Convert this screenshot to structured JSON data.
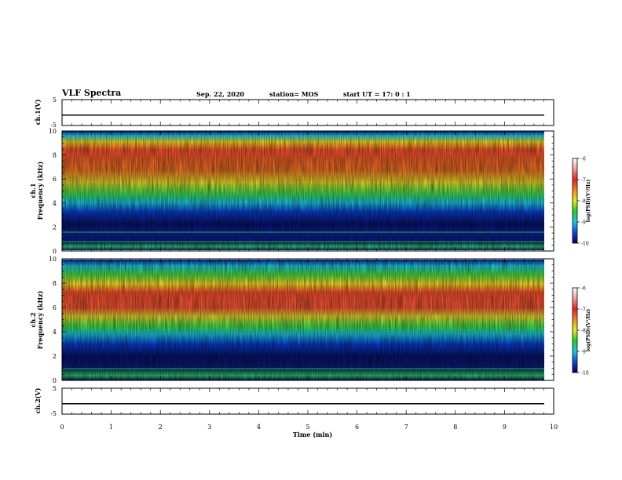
{
  "header": {
    "title": "VLF Spectra",
    "date": "Sep. 22, 2020",
    "station": "station= MOS",
    "start": "start  UT =   17: 0  : 1"
  },
  "chart_data": [
    {
      "type": "line",
      "panel": "ch1-waveform",
      "ylabel": "ch.1(V)",
      "ylim": [
        -5,
        5
      ],
      "yticks": [
        "5",
        "-5"
      ],
      "xlim": [
        0,
        10
      ],
      "series": [
        {
          "values": [
            -1,
            -1
          ]
        }
      ]
    },
    {
      "type": "heatmap",
      "panel": "ch1-spectrogram",
      "ylabel": "ch.1\nFrequency  (kHz)",
      "ylim": [
        0,
        10
      ],
      "yticks": [
        "0",
        "2",
        "4",
        "6",
        "8",
        "10"
      ],
      "xlim": [
        0,
        10
      ],
      "colorbar": {
        "label": "log(PSD)(V²/Hz)",
        "range": [
          -10,
          -6
        ],
        "ticks": [
          "-6",
          "-7",
          "-8",
          "-9",
          "-10"
        ]
      }
    },
    {
      "type": "heatmap",
      "panel": "ch2-spectrogram",
      "ylabel": "ch.2\nFrequency  (kHz)",
      "ylim": [
        0,
        10
      ],
      "yticks": [
        "0",
        "2",
        "4",
        "6",
        "8",
        "10"
      ],
      "xlim": [
        0,
        10
      ],
      "colorbar": {
        "label": "log(PSD)(V²/Hz)",
        "range": [
          -10,
          -6
        ],
        "ticks": [
          "-6",
          "-7",
          "-8",
          "-9",
          "-10"
        ]
      }
    },
    {
      "type": "line",
      "panel": "ch2-waveform",
      "ylabel": "ch.2(V)",
      "ylim": [
        -5,
        5
      ],
      "yticks": [
        "5",
        "-5"
      ],
      "xlim": [
        0,
        10
      ],
      "xticks": [
        "0",
        "1",
        "2",
        "3",
        "4",
        "5",
        "6",
        "7",
        "8",
        "9",
        "10"
      ],
      "xlabel": "Time  (min)",
      "series": [
        {
          "values": [
            -1,
            -1
          ]
        }
      ]
    }
  ]
}
